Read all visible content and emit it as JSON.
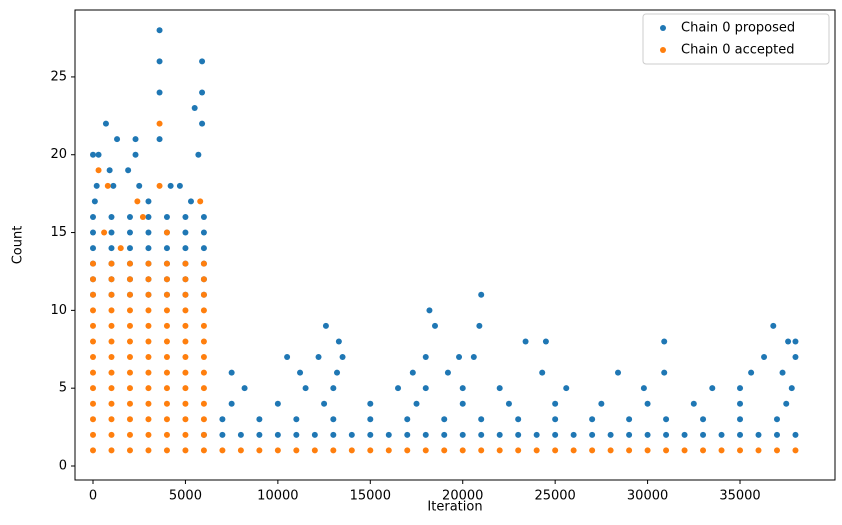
{
  "chart_data": {
    "type": "scatter",
    "xlabel": "Iteration",
    "ylabel": "Count",
    "xlim": [
      -974,
      40138
    ],
    "ylim": [
      -0.9,
      29.3
    ],
    "xticks": [
      0,
      5000,
      10000,
      15000,
      20000,
      25000,
      30000,
      35000
    ],
    "yticks": [
      0,
      5,
      10,
      15,
      20,
      25
    ],
    "legend": "upper right",
    "series": [
      {
        "name": "Chain 0 proposed",
        "color": "#1f77b4",
        "x": [
          0,
          1000,
          2000,
          3000,
          4000,
          5000,
          6000,
          0,
          1000,
          2000,
          3000,
          4000,
          5000,
          6000,
          0,
          1000,
          2000,
          3000,
          4000,
          5000,
          6000,
          0,
          1000,
          2000,
          3000,
          4000,
          5000,
          6000,
          0,
          1000,
          2000,
          3000,
          4000,
          5000,
          6000,
          0,
          1000,
          2000,
          3000,
          4000,
          5000,
          6000,
          0,
          300,
          700,
          1300,
          2300,
          2300,
          3600,
          3600,
          3600,
          3600,
          5500,
          5900,
          5900,
          5900,
          5700,
          4700,
          4200,
          1900,
          900,
          100,
          3000,
          5300,
          200,
          1100,
          2500,
          6000,
          7000,
          8000,
          9000,
          10000,
          11000,
          12000,
          13000,
          14000,
          15000,
          16000,
          17000,
          18000,
          19000,
          20000,
          21000,
          22000,
          23000,
          24000,
          25000,
          26000,
          27000,
          28000,
          29000,
          30000,
          31000,
          32000,
          33000,
          34000,
          35000,
          36000,
          37000,
          38000,
          7000,
          9000,
          11000,
          13000,
          15000,
          17000,
          19000,
          21000,
          23000,
          25000,
          27000,
          29000,
          31000,
          33000,
          35000,
          37000,
          7500,
          10000,
          12500,
          15000,
          17500,
          20000,
          22500,
          25000,
          27500,
          30000,
          32500,
          35000,
          37500,
          8200,
          11500,
          13000,
          16500,
          18000,
          20000,
          22000,
          25600,
          29800,
          33500,
          35000,
          37800,
          7500,
          11200,
          13200,
          17300,
          19200,
          24300,
          28400,
          30900,
          35600,
          37300,
          10500,
          12200,
          13500,
          18000,
          19800,
          20600,
          36300,
          38000,
          12600,
          13300,
          18200,
          18500,
          21000,
          20900,
          23400,
          24500,
          30900,
          36800,
          37600,
          38000
        ],
        "values": [
          11,
          11,
          11,
          11,
          11,
          11,
          11,
          12,
          12,
          12,
          12,
          12,
          12,
          12,
          13,
          13,
          13,
          13,
          13,
          13,
          13,
          14,
          14,
          14,
          14,
          14,
          14,
          14,
          15,
          15,
          15,
          15,
          15,
          15,
          15,
          16,
          16,
          16,
          16,
          16,
          16,
          16,
          20,
          20,
          22,
          21,
          21,
          20,
          28,
          26,
          24,
          21,
          23,
          26,
          24,
          22,
          20,
          18,
          18,
          19,
          19,
          17,
          17,
          17,
          18,
          18,
          18,
          2,
          2,
          2,
          2,
          2,
          2,
          2,
          2,
          2,
          2,
          2,
          2,
          2,
          2,
          2,
          2,
          2,
          2,
          2,
          2,
          2,
          2,
          2,
          2,
          2,
          2,
          2,
          2,
          2,
          2,
          2,
          2,
          2,
          3,
          3,
          3,
          3,
          3,
          3,
          3,
          3,
          3,
          3,
          3,
          3,
          3,
          3,
          3,
          3,
          4,
          4,
          4,
          4,
          4,
          4,
          4,
          4,
          4,
          4,
          4,
          4,
          4,
          5,
          5,
          5,
          5,
          5,
          5,
          5,
          5,
          5,
          5,
          5,
          5,
          6,
          6,
          6,
          6,
          6,
          6,
          6,
          6,
          6,
          6,
          7,
          7,
          7,
          7,
          7,
          7,
          7,
          7,
          9,
          8,
          10,
          9,
          11,
          9,
          8,
          8,
          8,
          9,
          8,
          8
        ]
      },
      {
        "name": "Chain 0 accepted",
        "color": "#ff7f0e",
        "x": [
          0,
          1000,
          2000,
          3000,
          4000,
          5000,
          6000,
          0,
          1000,
          2000,
          3000,
          4000,
          5000,
          6000,
          0,
          1000,
          2000,
          3000,
          4000,
          5000,
          6000,
          0,
          1000,
          2000,
          3000,
          4000,
          5000,
          6000,
          0,
          1000,
          2000,
          3000,
          4000,
          5000,
          6000,
          0,
          1000,
          2000,
          3000,
          4000,
          5000,
          6000,
          0,
          1000,
          2000,
          3000,
          4000,
          5000,
          6000,
          0,
          1000,
          2000,
          3000,
          4000,
          5000,
          6000,
          0,
          1000,
          2000,
          3000,
          4000,
          5000,
          6000,
          0,
          1000,
          2000,
          3000,
          4000,
          5000,
          6000,
          0,
          1000,
          2000,
          3000,
          4000,
          5000,
          6000,
          0,
          1000,
          2000,
          3000,
          4000,
          5000,
          6000,
          0,
          1000,
          2000,
          3000,
          4000,
          5000,
          6000,
          300,
          800,
          2400,
          3600,
          3600,
          2700,
          5800,
          600,
          4000,
          1500,
          7000,
          8000,
          9000,
          10000,
          11000,
          12000,
          13000,
          14000,
          15000,
          16000,
          17000,
          18000,
          19000,
          20000,
          21000,
          22000,
          23000,
          24000,
          25000,
          26000,
          27000,
          28000,
          29000,
          30000,
          31000,
          32000,
          33000,
          34000,
          35000,
          36000,
          37000,
          38000
        ],
        "values": [
          1,
          1,
          1,
          1,
          1,
          1,
          1,
          2,
          2,
          2,
          2,
          2,
          2,
          2,
          3,
          3,
          3,
          3,
          3,
          3,
          3,
          4,
          4,
          4,
          4,
          4,
          4,
          4,
          5,
          5,
          5,
          5,
          5,
          5,
          5,
          6,
          6,
          6,
          6,
          6,
          6,
          6,
          7,
          7,
          7,
          7,
          7,
          7,
          7,
          8,
          8,
          8,
          8,
          8,
          8,
          8,
          9,
          9,
          9,
          9,
          9,
          9,
          9,
          10,
          10,
          10,
          10,
          10,
          10,
          10,
          11,
          11,
          11,
          11,
          11,
          11,
          11,
          12,
          12,
          12,
          12,
          12,
          12,
          12,
          13,
          13,
          13,
          13,
          13,
          13,
          13,
          19,
          18,
          17,
          22,
          18,
          16,
          17,
          15,
          15,
          14,
          1,
          1,
          1,
          1,
          1,
          1,
          1,
          1,
          1,
          1,
          1,
          1,
          1,
          1,
          1,
          1,
          1,
          1,
          1,
          1,
          1,
          1,
          1,
          1,
          1,
          1,
          1,
          1,
          1,
          1,
          1,
          1
        ]
      }
    ]
  }
}
